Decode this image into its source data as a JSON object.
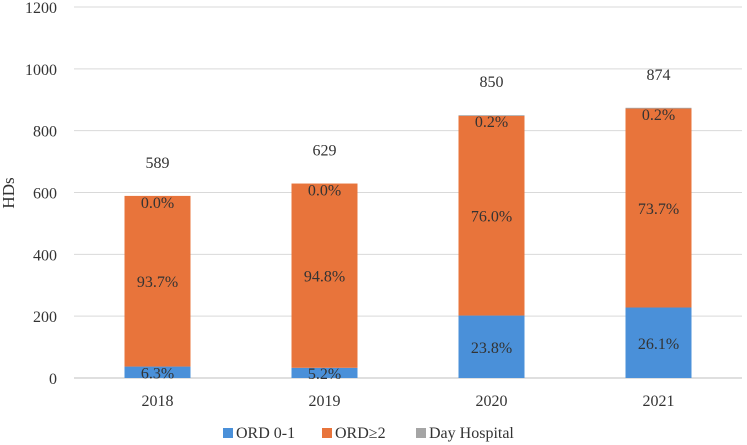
{
  "chart_data": {
    "type": "bar",
    "stacked": true,
    "ylabel": "HDs",
    "ylim": [
      0,
      1200
    ],
    "yticks": [
      0,
      200,
      400,
      600,
      800,
      1000,
      1200
    ],
    "grid": true,
    "legend_position": "bottom",
    "categories": [
      "2018",
      "2019",
      "2020",
      "2021"
    ],
    "totals": [
      "589",
      "629",
      "850",
      "874"
    ],
    "series": [
      {
        "name": "ORD 0-1",
        "color": "#4a90d9",
        "values": [
          37,
          33,
          202,
          228
        ],
        "labels": [
          "6.3%",
          "5.2%",
          "23.8%",
          "26.1%"
        ]
      },
      {
        "name": "ORD≥2",
        "color": "#e8743b",
        "values": [
          552,
          596,
          646,
          644
        ],
        "labels": [
          "93.7%",
          "94.8%",
          "76.0%",
          "73.7%"
        ]
      },
      {
        "name": "Day Hospital",
        "color": "#a5a5a5",
        "values": [
          0,
          0,
          2,
          2
        ],
        "labels": [
          "0.0%",
          "0.0%",
          "0.2%",
          "0.2%"
        ]
      }
    ]
  }
}
